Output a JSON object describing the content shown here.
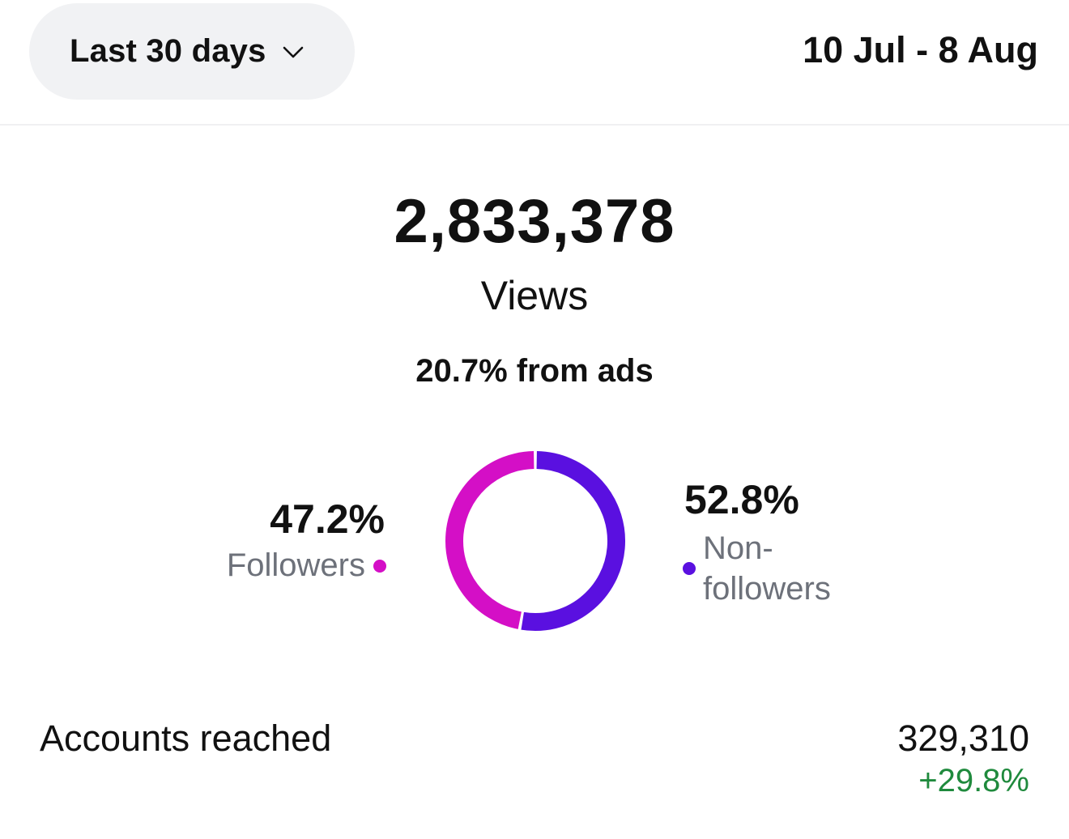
{
  "header": {
    "range_selector": {
      "label": "Last 30 days",
      "icon": "chevron-down-icon"
    },
    "date_range": "10 Jul - 8 Aug"
  },
  "summary": {
    "total_views": "2,833,378",
    "total_label": "Views",
    "ads_note": "20.7% from ads"
  },
  "breakdown": {
    "followers": {
      "percent_label": "47.2%",
      "value": 47.2,
      "label": "Followers",
      "color": "#d40fc6"
    },
    "non_followers": {
      "percent_label": "52.8%",
      "value": 52.8,
      "label": "Non-followers",
      "color": "#5a10e0"
    }
  },
  "metrics": {
    "accounts_reached": {
      "label": "Accounts reached",
      "value": "329,310",
      "change": "+29.8%",
      "change_color": "#1f8a3d"
    }
  }
}
